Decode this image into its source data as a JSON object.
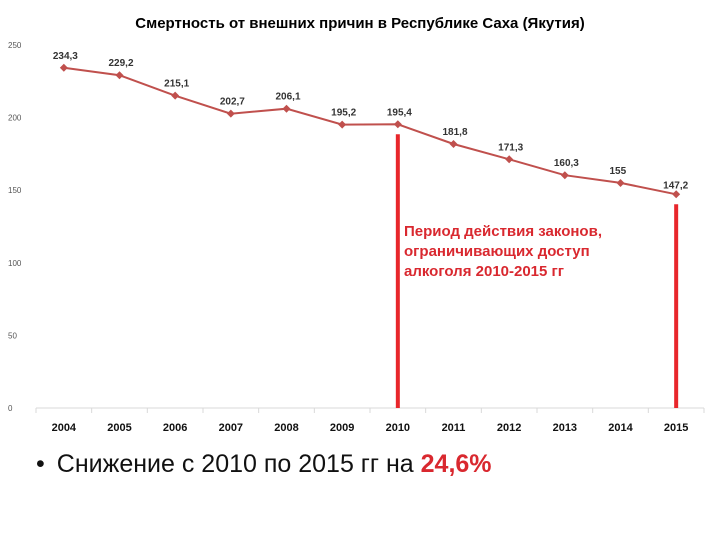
{
  "chart_data": {
    "type": "line",
    "title": "Смертность от внешних причин в Республике Саха (Якутия)",
    "xlabel": "",
    "ylabel": "",
    "categories": [
      "2004",
      "2005",
      "2006",
      "2007",
      "2008",
      "2009",
      "2010",
      "2011",
      "2012",
      "2013",
      "2014",
      "2015"
    ],
    "values": [
      234.3,
      229.2,
      215.1,
      202.7,
      206.1,
      195.2,
      195.4,
      181.8,
      171.3,
      160.3,
      155,
      147.2
    ],
    "data_labels": [
      "234,3",
      "229,2",
      "215,1",
      "202,7",
      "206,1",
      "195,2",
      "195,4",
      "181,8",
      "171,3",
      "160,3",
      "155",
      "147,2"
    ],
    "yticks": [
      "250",
      "200",
      "150",
      "100",
      "50",
      "0"
    ],
    "ytick_values": [
      250,
      200,
      150,
      100,
      50,
      0
    ],
    "ylim": [
      0,
      250
    ],
    "grid": false,
    "legend": "none",
    "line_color": "#c0504d",
    "marker_lines": {
      "years": [
        "2010",
        "2015"
      ],
      "color": "#e8262b"
    },
    "annotation": [
      "Период действия законов,",
      "ограничивающих доступ",
      "алкоголя 2010-2015 гг"
    ]
  },
  "bullet": {
    "marker": "•",
    "text": "Снижение с 2010 по 2015 гг на ",
    "highlight": "24,6%"
  },
  "colors": {
    "accent": "#d9282f",
    "series": "#c0504d"
  }
}
